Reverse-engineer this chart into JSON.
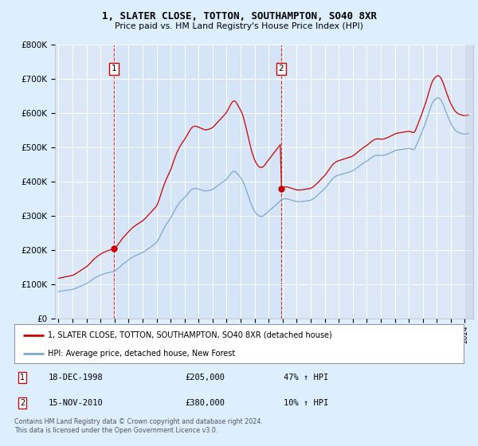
{
  "title": "1, SLATER CLOSE, TOTTON, SOUTHAMPTON, SO40 8XR",
  "subtitle": "Price paid vs. HM Land Registry's House Price Index (HPI)",
  "bg_color": "#ddeeff",
  "plot_bg": "#dce8f8",
  "grid_color": "#ffffff",
  "red_line_color": "#cc0000",
  "blue_line_color": "#7aaad0",
  "sale1_year": 1998.958,
  "sale1_price": 205000,
  "sale1_label": "1",
  "sale1_date": "18-DEC-1998",
  "sale1_hpi_pct": "47% ↑ HPI",
  "sale2_year": 2010.875,
  "sale2_price": 380000,
  "sale2_label": "2",
  "sale2_date": "15-NOV-2010",
  "sale2_hpi_pct": "10% ↑ HPI",
  "legend_line1": "1, SLATER CLOSE, TOTTON, SOUTHAMPTON, SO40 8XR (detached house)",
  "legend_line2": "HPI: Average price, detached house, New Forest",
  "footer": "Contains HM Land Registry data © Crown copyright and database right 2024.\nThis data is licensed under the Open Government Licence v3.0.",
  "ylim": [
    0,
    800000
  ],
  "yticks": [
    0,
    100000,
    200000,
    300000,
    400000,
    500000,
    600000,
    700000,
    800000
  ],
  "ytick_labels": [
    "£0",
    "£100K",
    "£200K",
    "£300K",
    "£400K",
    "£500K",
    "£600K",
    "£700K",
    "£800K"
  ],
  "hpi_months": [
    1995.0,
    1995.083,
    1995.167,
    1995.25,
    1995.333,
    1995.417,
    1995.5,
    1995.583,
    1995.667,
    1995.75,
    1995.833,
    1995.917,
    1996.0,
    1996.083,
    1996.167,
    1996.25,
    1996.333,
    1996.417,
    1996.5,
    1996.583,
    1996.667,
    1996.75,
    1996.833,
    1996.917,
    1997.0,
    1997.083,
    1997.167,
    1997.25,
    1997.333,
    1997.417,
    1997.5,
    1997.583,
    1997.667,
    1997.75,
    1997.833,
    1997.917,
    1998.0,
    1998.083,
    1998.167,
    1998.25,
    1998.333,
    1998.417,
    1998.5,
    1998.583,
    1998.667,
    1998.75,
    1998.833,
    1998.917,
    1999.0,
    1999.083,
    1999.167,
    1999.25,
    1999.333,
    1999.417,
    1999.5,
    1999.583,
    1999.667,
    1999.75,
    1999.833,
    1999.917,
    2000.0,
    2000.083,
    2000.167,
    2000.25,
    2000.333,
    2000.417,
    2000.5,
    2000.583,
    2000.667,
    2000.75,
    2000.833,
    2000.917,
    2001.0,
    2001.083,
    2001.167,
    2001.25,
    2001.333,
    2001.417,
    2001.5,
    2001.583,
    2001.667,
    2001.75,
    2001.833,
    2001.917,
    2002.0,
    2002.083,
    2002.167,
    2002.25,
    2002.333,
    2002.417,
    2002.5,
    2002.583,
    2002.667,
    2002.75,
    2002.833,
    2002.917,
    2003.0,
    2003.083,
    2003.167,
    2003.25,
    2003.333,
    2003.417,
    2003.5,
    2003.583,
    2003.667,
    2003.75,
    2003.833,
    2003.917,
    2004.0,
    2004.083,
    2004.167,
    2004.25,
    2004.333,
    2004.417,
    2004.5,
    2004.583,
    2004.667,
    2004.75,
    2004.833,
    2004.917,
    2005.0,
    2005.083,
    2005.167,
    2005.25,
    2005.333,
    2005.417,
    2005.5,
    2005.583,
    2005.667,
    2005.75,
    2005.833,
    2005.917,
    2006.0,
    2006.083,
    2006.167,
    2006.25,
    2006.333,
    2006.417,
    2006.5,
    2006.583,
    2006.667,
    2006.75,
    2006.833,
    2006.917,
    2007.0,
    2007.083,
    2007.167,
    2007.25,
    2007.333,
    2007.417,
    2007.5,
    2007.583,
    2007.667,
    2007.75,
    2007.833,
    2007.917,
    2008.0,
    2008.083,
    2008.167,
    2008.25,
    2008.333,
    2008.417,
    2008.5,
    2008.583,
    2008.667,
    2008.75,
    2008.833,
    2008.917,
    2009.0,
    2009.083,
    2009.167,
    2009.25,
    2009.333,
    2009.417,
    2009.5,
    2009.583,
    2009.667,
    2009.75,
    2009.833,
    2009.917,
    2010.0,
    2010.083,
    2010.167,
    2010.25,
    2010.333,
    2010.417,
    2010.5,
    2010.583,
    2010.667,
    2010.75,
    2010.833,
    2010.917,
    2011.0,
    2011.083,
    2011.167,
    2011.25,
    2011.333,
    2011.417,
    2011.5,
    2011.583,
    2011.667,
    2011.75,
    2011.833,
    2011.917,
    2012.0,
    2012.083,
    2012.167,
    2012.25,
    2012.333,
    2012.417,
    2012.5,
    2012.583,
    2012.667,
    2012.75,
    2012.833,
    2012.917,
    2013.0,
    2013.083,
    2013.167,
    2013.25,
    2013.333,
    2013.417,
    2013.5,
    2013.583,
    2013.667,
    2013.75,
    2013.833,
    2013.917,
    2014.0,
    2014.083,
    2014.167,
    2014.25,
    2014.333,
    2014.417,
    2014.5,
    2014.583,
    2014.667,
    2014.75,
    2014.833,
    2014.917,
    2015.0,
    2015.083,
    2015.167,
    2015.25,
    2015.333,
    2015.417,
    2015.5,
    2015.583,
    2015.667,
    2015.75,
    2015.833,
    2015.917,
    2016.0,
    2016.083,
    2016.167,
    2016.25,
    2016.333,
    2016.417,
    2016.5,
    2016.583,
    2016.667,
    2016.75,
    2016.833,
    2016.917,
    2017.0,
    2017.083,
    2017.167,
    2017.25,
    2017.333,
    2017.417,
    2017.5,
    2017.583,
    2017.667,
    2017.75,
    2017.833,
    2017.917,
    2018.0,
    2018.083,
    2018.167,
    2018.25,
    2018.333,
    2018.417,
    2018.5,
    2018.583,
    2018.667,
    2018.75,
    2018.833,
    2018.917,
    2019.0,
    2019.083,
    2019.167,
    2019.25,
    2019.333,
    2019.417,
    2019.5,
    2019.583,
    2019.667,
    2019.75,
    2019.833,
    2019.917,
    2020.0,
    2020.083,
    2020.167,
    2020.25,
    2020.333,
    2020.417,
    2020.5,
    2020.583,
    2020.667,
    2020.75,
    2020.833,
    2020.917,
    2021.0,
    2021.083,
    2021.167,
    2021.25,
    2021.333,
    2021.417,
    2021.5,
    2021.583,
    2021.667,
    2021.75,
    2021.833,
    2021.917,
    2022.0,
    2022.083,
    2022.167,
    2022.25,
    2022.333,
    2022.417,
    2022.5,
    2022.583,
    2022.667,
    2022.75,
    2022.833,
    2022.917,
    2023.0,
    2023.083,
    2023.167,
    2023.25,
    2023.333,
    2023.417,
    2023.5,
    2023.583,
    2023.667,
    2023.75,
    2023.833,
    2023.917,
    2024.0,
    2024.083,
    2024.167,
    2024.25
  ],
  "hpi_values": [
    80000,
    80500,
    81000,
    81500,
    82000,
    82500,
    83000,
    83500,
    84000,
    84500,
    85000,
    85500,
    86000,
    87000,
    88000,
    89500,
    91000,
    92500,
    94000,
    95500,
    97000,
    98500,
    100000,
    101500,
    103000,
    105000,
    107000,
    109500,
    112000,
    114500,
    117000,
    119000,
    121000,
    123000,
    124500,
    126000,
    127500,
    129000,
    130500,
    131500,
    132500,
    133500,
    134500,
    135200,
    135900,
    136500,
    137200,
    138000,
    139500,
    141500,
    144000,
    147000,
    150000,
    153000,
    156500,
    159500,
    162000,
    164500,
    167000,
    169500,
    172000,
    174500,
    177000,
    179000,
    181000,
    183000,
    184500,
    186000,
    187500,
    189000,
    190500,
    192000,
    193500,
    195500,
    197500,
    200000,
    202500,
    205000,
    207500,
    210000,
    212500,
    215000,
    217500,
    220000,
    223000,
    228000,
    234000,
    241000,
    248000,
    255000,
    262000,
    268000,
    274000,
    279000,
    284000,
    289000,
    294000,
    300000,
    307000,
    314000,
    320000,
    326000,
    331000,
    336000,
    340000,
    344000,
    348000,
    351000,
    354000,
    358000,
    362000,
    366000,
    370000,
    374000,
    377000,
    379000,
    380000,
    380500,
    380000,
    379500,
    378500,
    377500,
    376500,
    375500,
    374500,
    373500,
    373000,
    373500,
    374000,
    374500,
    375500,
    376500,
    378000,
    380000,
    382500,
    385000,
    387500,
    390000,
    392500,
    395000,
    397500,
    400000,
    402500,
    405000,
    408000,
    412000,
    416500,
    421000,
    425000,
    428500,
    430000,
    430000,
    428000,
    424000,
    420000,
    416000,
    412000,
    407000,
    401000,
    393000,
    384000,
    374000,
    364000,
    354000,
    344000,
    335000,
    327000,
    320000,
    314000,
    309000,
    305000,
    302000,
    300000,
    299000,
    299000,
    300000,
    302000,
    305000,
    308000,
    311000,
    314000,
    317000,
    320000,
    323000,
    326000,
    329000,
    332000,
    335000,
    338000,
    341000,
    344000,
    347000,
    349000,
    350000,
    350000,
    350000,
    350000,
    349000,
    348000,
    347000,
    346000,
    345000,
    344000,
    343000,
    342000,
    342000,
    342000,
    342000,
    342000,
    342500,
    343000,
    343500,
    344000,
    344500,
    345000,
    345500,
    346500,
    348000,
    350000,
    352500,
    355000,
    358000,
    361000,
    364000,
    367500,
    371000,
    374000,
    377000,
    380000,
    384000,
    388500,
    393000,
    397500,
    402000,
    406000,
    409500,
    412500,
    415000,
    417000,
    418500,
    419500,
    420500,
    421500,
    422500,
    423500,
    424500,
    425500,
    426500,
    427500,
    428500,
    429500,
    430500,
    432000,
    434000,
    436500,
    439000,
    441500,
    444000,
    446500,
    449000,
    451500,
    454000,
    456000,
    458000,
    460000,
    462500,
    465000,
    467500,
    470000,
    472500,
    474500,
    476000,
    477000,
    477500,
    477500,
    477000,
    476500,
    476500,
    477000,
    477500,
    478500,
    479500,
    481000,
    482500,
    484000,
    485500,
    487000,
    488500,
    490000,
    491500,
    492500,
    493000,
    493500,
    494000,
    494500,
    495000,
    495500,
    496000,
    496500,
    497000,
    497500,
    497000,
    496000,
    494500,
    494000,
    496000,
    502000,
    510000,
    518000,
    526000,
    534000,
    542000,
    551000,
    560000,
    569000,
    578000,
    588000,
    599000,
    610000,
    620000,
    628000,
    634000,
    638000,
    641000,
    644000,
    645000,
    644000,
    641000,
    636000,
    629000,
    621000,
    612000,
    603000,
    594000,
    586000,
    578000,
    571000,
    565000,
    559000,
    554000,
    550000,
    547000,
    545000,
    543000,
    542000,
    541000,
    540000,
    539500,
    539000,
    539500,
    540000,
    541000
  ]
}
